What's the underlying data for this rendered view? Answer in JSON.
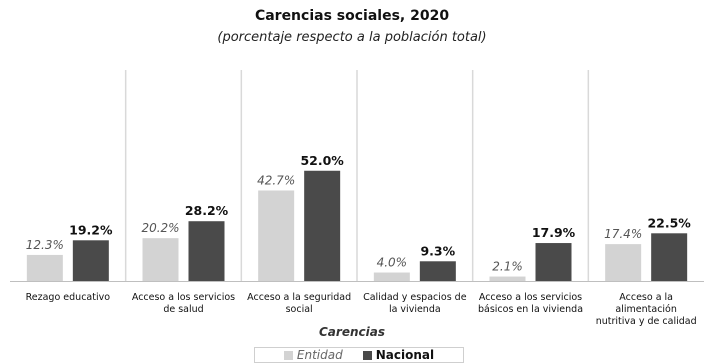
{
  "chart_data": {
    "type": "bar",
    "title": "Carencias sociales, 2020",
    "subtitle": "(porcentaje respecto a la población total)",
    "xlabel": "Carencias",
    "ylabel": "",
    "ylim": [
      0,
      60
    ],
    "grid": false,
    "legend_position": "bottom",
    "categories": [
      [
        "Rezago educativo"
      ],
      [
        "Acceso a los servicios",
        "de salud"
      ],
      [
        "Acceso a la seguridad",
        "social"
      ],
      [
        "Calidad y espacios de",
        "la vivienda"
      ],
      [
        "Acceso a los servicios",
        "básicos en la vivienda"
      ],
      [
        "Acceso a la",
        "alimentación",
        "nutritiva y de calidad"
      ]
    ],
    "series": [
      {
        "name": "Entidad",
        "values": [
          12.3,
          20.2,
          42.7,
          4.0,
          2.1,
          17.4
        ],
        "labels": [
          "12.3%",
          "20.2%",
          "42.7%",
          "4.0%",
          "2.1%",
          "17.4%"
        ],
        "color": "#d3d3d3"
      },
      {
        "name": "Nacional",
        "values": [
          19.2,
          28.2,
          52.0,
          9.3,
          17.9,
          22.5
        ],
        "labels": [
          "19.2%",
          "28.2%",
          "52.0%",
          "9.3%",
          "17.9%",
          "22.5%"
        ],
        "color": "#4a4a4a"
      }
    ]
  }
}
